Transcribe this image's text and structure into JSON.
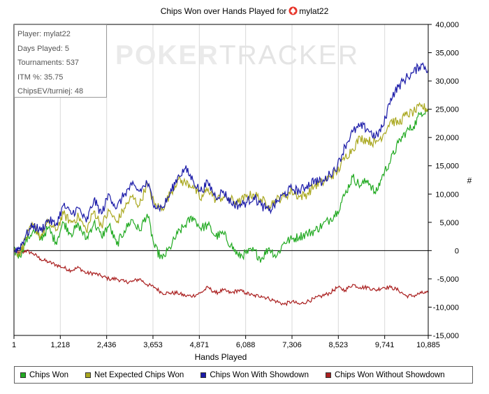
{
  "title": {
    "prefix": "Chips Won over Hands Played for",
    "player": "mylat22"
  },
  "watermark": {
    "part1": "POKER",
    "part2": "TRACKER"
  },
  "info": {
    "player": "Player: mylat22",
    "days": "Days Played: 5",
    "tournaments": "Tournaments: 537",
    "itm": "ITM %: 35.75",
    "chipsev": "ChipsEV/turniej: 48"
  },
  "chart_data": {
    "type": "line",
    "title": "Chips Won over Hands Played for mylat22",
    "xlabel": "Hands Played",
    "ylabel": "#",
    "xlim": [
      1,
      10885
    ],
    "ylim": [
      -15000,
      40000
    ],
    "x_ticks": [
      1,
      1218,
      2436,
      3653,
      4871,
      6088,
      7306,
      8523,
      9741,
      10885
    ],
    "x_tick_labels": [
      "1",
      "1,218",
      "2,436",
      "3,653",
      "4,871",
      "6,088",
      "7,306",
      "8,523",
      "9,741",
      "10,885"
    ],
    "y_ticks": [
      -15000,
      -10000,
      -5000,
      0,
      5000,
      10000,
      15000,
      20000,
      25000,
      30000,
      35000,
      40000
    ],
    "y_tick_labels": [
      "-15,000",
      "-10,000",
      "-5,000",
      "0",
      "5,000",
      "10,000",
      "15,000",
      "20,000",
      "25,000",
      "30,000",
      "35,000",
      "40,000"
    ],
    "grid": "vertical",
    "legend_position": "bottom",
    "series": [
      {
        "name": "Chips Won",
        "color": "#22aa22",
        "x": [
          1,
          150,
          300,
          500,
          700,
          900,
          1100,
          1300,
          1500,
          1700,
          1900,
          2100,
          2300,
          2500,
          2700,
          2900,
          3100,
          3300,
          3500,
          3700,
          3900,
          4100,
          4300,
          4500,
          4700,
          4900,
          5100,
          5300,
          5500,
          5700,
          5900,
          6100,
          6300,
          6500,
          6700,
          6900,
          7100,
          7300,
          7500,
          7700,
          7900,
          8100,
          8300,
          8500,
          8700,
          8900,
          9100,
          9300,
          9500,
          9700,
          9900,
          10100,
          10300,
          10500,
          10700,
          10885
        ],
        "y": [
          0,
          -1000,
          1500,
          3500,
          2000,
          4000,
          1500,
          5000,
          3000,
          4500,
          2000,
          5000,
          2500,
          4500,
          1000,
          3500,
          5500,
          3500,
          6500,
          500,
          -1500,
          500,
          3000,
          4500,
          6000,
          4000,
          4500,
          2500,
          3000,
          1000,
          -1000,
          -500,
          0,
          -1500,
          500,
          -1000,
          1500,
          2000,
          2500,
          3000,
          3500,
          4500,
          5500,
          7000,
          10000,
          13000,
          11500,
          12500,
          10000,
          13500,
          16000,
          19000,
          21000,
          22000,
          24500,
          25000
        ]
      },
      {
        "name": "Net Expected Chips Won",
        "color": "#aaa820",
        "x": [
          1,
          150,
          300,
          500,
          700,
          900,
          1100,
          1300,
          1500,
          1700,
          1900,
          2100,
          2300,
          2500,
          2700,
          2900,
          3100,
          3300,
          3500,
          3700,
          3900,
          4100,
          4300,
          4500,
          4700,
          4900,
          5100,
          5300,
          5500,
          5700,
          5900,
          6100,
          6300,
          6500,
          6700,
          6900,
          7100,
          7300,
          7500,
          7700,
          7900,
          8100,
          8300,
          8500,
          8700,
          8900,
          9100,
          9300,
          9500,
          9700,
          9900,
          10100,
          10300,
          10500,
          10700,
          10885
        ],
        "y": [
          0,
          -500,
          2000,
          4500,
          2500,
          5000,
          3500,
          6500,
          5000,
          6000,
          3500,
          7000,
          4500,
          7000,
          5000,
          7500,
          9500,
          8000,
          12000,
          8000,
          7500,
          10000,
          12500,
          12000,
          11500,
          9000,
          11000,
          9000,
          9500,
          9000,
          8500,
          9500,
          10000,
          9000,
          8000,
          9000,
          9500,
          10500,
          9500,
          10000,
          11500,
          12000,
          13000,
          14000,
          16500,
          18000,
          20000,
          19500,
          19000,
          20500,
          23000,
          22500,
          24000,
          24500,
          25500,
          25000
        ]
      },
      {
        "name": "Chips Won With Showdown",
        "color": "#1a1aa8",
        "x": [
          1,
          150,
          300,
          500,
          700,
          900,
          1100,
          1300,
          1500,
          1700,
          1900,
          2100,
          2300,
          2500,
          2700,
          2900,
          3100,
          3300,
          3500,
          3700,
          3900,
          4100,
          4300,
          4500,
          4700,
          4900,
          5100,
          5300,
          5500,
          5700,
          5900,
          6100,
          6300,
          6500,
          6700,
          6900,
          7100,
          7300,
          7500,
          7700,
          7900,
          8100,
          8300,
          8500,
          8700,
          8900,
          9100,
          9300,
          9500,
          9700,
          9900,
          10100,
          10300,
          10500,
          10700,
          10885
        ],
        "y": [
          0,
          500,
          2500,
          4500,
          3500,
          5500,
          4500,
          8000,
          6500,
          7500,
          5000,
          9000,
          6500,
          10000,
          7500,
          10000,
          11500,
          10500,
          12000,
          8000,
          7500,
          10000,
          13000,
          14500,
          12500,
          10500,
          12000,
          9500,
          10500,
          8500,
          8000,
          8500,
          9500,
          8000,
          7000,
          8500,
          10000,
          11000,
          10500,
          11500,
          12500,
          12000,
          13500,
          15000,
          18500,
          21000,
          22000,
          21500,
          20000,
          22000,
          27000,
          29000,
          30500,
          31500,
          33000,
          32000
        ]
      },
      {
        "name": "Chips Won Without Showdown",
        "color": "#aa2020",
        "x": [
          1,
          150,
          300,
          500,
          700,
          900,
          1100,
          1300,
          1500,
          1700,
          1900,
          2100,
          2300,
          2500,
          2700,
          2900,
          3100,
          3300,
          3500,
          3700,
          3900,
          4100,
          4300,
          4500,
          4700,
          4900,
          5100,
          5300,
          5500,
          5700,
          5900,
          6100,
          6300,
          6500,
          6700,
          6900,
          7100,
          7300,
          7500,
          7700,
          7900,
          8100,
          8300,
          8500,
          8700,
          8900,
          9100,
          9300,
          9500,
          9700,
          9900,
          10100,
          10300,
          10500,
          10700,
          10885
        ],
        "y": [
          0,
          -500,
          0,
          -500,
          -1500,
          -2000,
          -2500,
          -3000,
          -3500,
          -3000,
          -4000,
          -4000,
          -4500,
          -5000,
          -5000,
          -5500,
          -5500,
          -5000,
          -6000,
          -6500,
          -7500,
          -7500,
          -7500,
          -8000,
          -8000,
          -7500,
          -6500,
          -7500,
          -7000,
          -7500,
          -7000,
          -7500,
          -8000,
          -8000,
          -8500,
          -9000,
          -9500,
          -9000,
          -9500,
          -9000,
          -8500,
          -8000,
          -7500,
          -6500,
          -7000,
          -6000,
          -6500,
          -6500,
          -7000,
          -6500,
          -6500,
          -7000,
          -8000,
          -8000,
          -7500,
          -7500
        ]
      }
    ]
  },
  "legend": [
    {
      "label": "Chips Won",
      "color": "#22aa22"
    },
    {
      "label": "Net Expected Chips Won",
      "color": "#aaa820"
    },
    {
      "label": "Chips Won With Showdown",
      "color": "#1a1aa8"
    },
    {
      "label": "Chips Won Without Showdown",
      "color": "#aa2020"
    }
  ]
}
